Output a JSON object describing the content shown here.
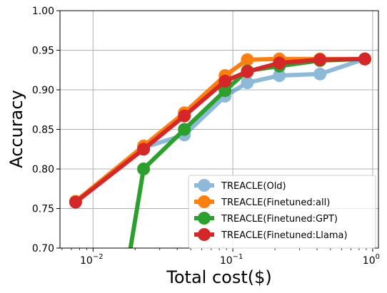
{
  "chart_data": {
    "type": "line",
    "xlabel": "Total cost($)",
    "ylabel": "Accuracy",
    "xscale": "log",
    "xlim": [
      0.0058,
      1.1
    ],
    "ylim": [
      0.7,
      1.0
    ],
    "grid": true,
    "legend_position": "bottom-right",
    "x_ticks": [
      {
        "value": 0.01,
        "base": "10",
        "exp": "−2"
      },
      {
        "value": 0.1,
        "base": "10",
        "exp": "−1"
      },
      {
        "value": 1,
        "base": "10",
        "exp": "0"
      }
    ],
    "y_ticks": [
      "0.70",
      "0.75",
      "0.80",
      "0.85",
      "0.90",
      "0.95",
      "1.00"
    ],
    "series": [
      {
        "name": "TREACLE(Old)",
        "color": "#1f77b4",
        "opacity": 0.5,
        "points": [
          [
            0.0075,
            0.759
          ],
          [
            0.023,
            0.827
          ],
          [
            0.045,
            0.843
          ],
          [
            0.088,
            0.892
          ],
          [
            0.127,
            0.909
          ],
          [
            0.215,
            0.918
          ],
          [
            0.42,
            0.92
          ],
          [
            0.88,
            0.939
          ]
        ]
      },
      {
        "name": "TREACLE(Finetuned:all)",
        "color": "#ff7f0e",
        "opacity": 1,
        "points": [
          [
            0.0075,
            0.759
          ],
          [
            0.023,
            0.829
          ],
          [
            0.045,
            0.871
          ],
          [
            0.088,
            0.918
          ],
          [
            0.127,
            0.938
          ],
          [
            0.215,
            0.939
          ],
          [
            0.42,
            0.939
          ],
          [
            0.88,
            0.939
          ]
        ]
      },
      {
        "name": "TREACLE(Finetuned:GPT)",
        "color": "#2ca02c",
        "opacity": 1,
        "points": [
          [
            0.017,
            0.66
          ],
          [
            0.023,
            0.8
          ],
          [
            0.045,
            0.85
          ],
          [
            0.088,
            0.899
          ],
          [
            0.127,
            0.924
          ],
          [
            0.215,
            0.93
          ],
          [
            0.42,
            0.937
          ],
          [
            0.88,
            0.939
          ]
        ]
      },
      {
        "name": "TREACLE(Finetuned:Llama)",
        "color": "#d62728",
        "opacity": 1,
        "points": [
          [
            0.0075,
            0.758
          ],
          [
            0.023,
            0.825
          ],
          [
            0.045,
            0.867
          ],
          [
            0.088,
            0.911
          ],
          [
            0.127,
            0.923
          ],
          [
            0.215,
            0.934
          ],
          [
            0.42,
            0.938
          ],
          [
            0.88,
            0.939
          ]
        ]
      }
    ]
  }
}
